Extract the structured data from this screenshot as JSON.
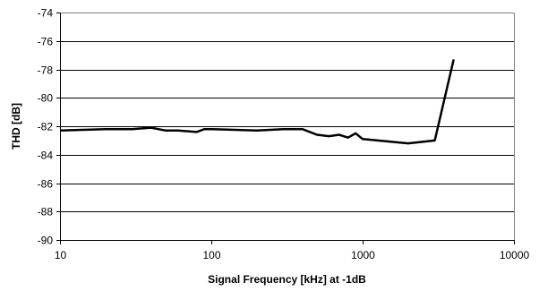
{
  "chart_data": {
    "type": "line",
    "xlabel": "Signal Frequency [kHz] at -1dB",
    "ylabel": "THD [dB]",
    "xscale": "log",
    "xlim": [
      10,
      10000
    ],
    "ylim": [
      -90,
      -74
    ],
    "xticks": [
      10,
      100,
      1000,
      10000
    ],
    "xtick_labels": [
      "10",
      "100",
      "1000",
      "10000"
    ],
    "yticks": [
      -90,
      -88,
      -86,
      -84,
      -82,
      -80,
      -78,
      -76,
      -74
    ],
    "ytick_labels": [
      "-90",
      "-88",
      "-86",
      "-84",
      "-82",
      "-80",
      "-78",
      "-76",
      "-74"
    ],
    "grid": "horizontal",
    "legend": "none",
    "series": [
      {
        "color": "#000000",
        "x": [
          10,
          20,
          30,
          40,
          50,
          60,
          80,
          90,
          100,
          200,
          300,
          400,
          500,
          600,
          700,
          800,
          900,
          1000,
          2000,
          3000,
          4000
        ],
        "y": [
          -82.3,
          -82.2,
          -82.2,
          -82.1,
          -82.3,
          -82.3,
          -82.4,
          -82.2,
          -82.2,
          -82.3,
          -82.2,
          -82.2,
          -82.6,
          -82.7,
          -82.6,
          -82.8,
          -82.5,
          -82.9,
          -83.2,
          -83.0,
          -77.3
        ]
      }
    ]
  }
}
